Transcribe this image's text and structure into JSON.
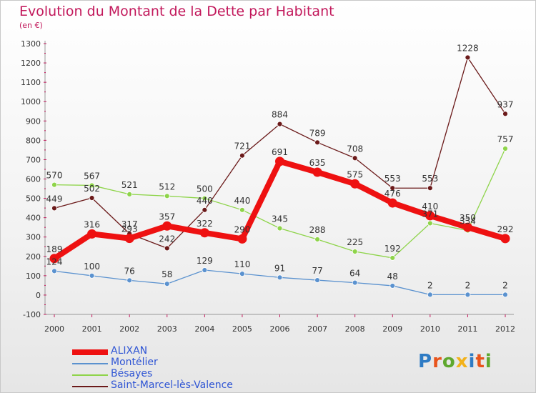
{
  "title": "Evolution du Montant de la Dette par Habitant",
  "subtitle": "(en €)",
  "logo": {
    "text": "Proxiti",
    "colors": [
      "#2e7bc4",
      "#e8541c",
      "#5fa82e",
      "#f2b21b",
      "#2e7bc4",
      "#e8541c",
      "#5fa82e"
    ]
  },
  "chart_data": {
    "type": "line",
    "x": [
      "2000",
      "2001",
      "2002",
      "2003",
      "2004",
      "2005",
      "2006",
      "2007",
      "2008",
      "2009",
      "2010",
      "2011",
      "2012"
    ],
    "ylim": [
      -100,
      1300
    ],
    "yticks": [
      -100,
      0,
      100,
      200,
      300,
      400,
      500,
      600,
      700,
      800,
      900,
      1000,
      1100,
      1200,
      1300
    ],
    "grid": false,
    "legend_position": "bottom-left",
    "series": [
      {
        "name": "ALIXAN",
        "color": "#ee1111",
        "values": [
          189,
          316,
          293,
          357,
          322,
          290,
          691,
          635,
          575,
          476,
          410,
          350,
          292
        ]
      },
      {
        "name": "Montélier",
        "color": "#5b92cf",
        "values": [
          124,
          100,
          76,
          58,
          129,
          110,
          91,
          77,
          64,
          48,
          2,
          2,
          2
        ]
      },
      {
        "name": "Bésayes",
        "color": "#8ed44a",
        "values": [
          570,
          567,
          521,
          512,
          500,
          440,
          345,
          288,
          225,
          192,
          371,
          334,
          757
        ]
      },
      {
        "name": "Saint-Marcel-lès-Valence",
        "color": "#6b1a1a",
        "values": [
          449,
          502,
          317,
          242,
          440,
          721,
          884,
          789,
          708,
          553,
          553,
          1228,
          937
        ]
      }
    ],
    "labels": [
      [
        "189",
        "316",
        "293",
        "357",
        "322",
        "290",
        "691",
        "635",
        "575",
        "476",
        "410",
        "350",
        "292"
      ],
      [
        "124",
        "100",
        "76",
        "58",
        "129",
        "110",
        "91",
        "77",
        "64",
        "48",
        "2",
        "2",
        "2"
      ],
      [
        "570",
        "567",
        "521",
        "512",
        "500",
        "440",
        "345",
        "288",
        "225",
        "192",
        "371",
        "334",
        "757"
      ],
      [
        "449",
        "502",
        "317",
        "242",
        "440",
        "721",
        "884",
        "789",
        "708",
        "553",
        "553",
        "1228",
        "937"
      ]
    ]
  }
}
